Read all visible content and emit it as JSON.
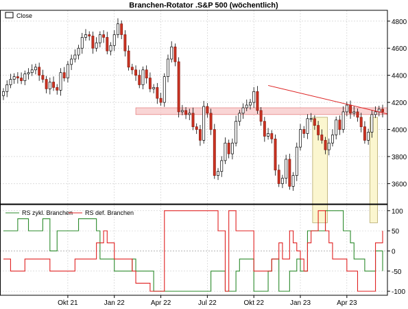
{
  "title": "Branchen-Rotator .S&P 500 (wöchentlich)",
  "colors": {
    "up_candle_fill": "#ffffff",
    "up_candle_stroke": "#000000",
    "down_candle_fill": "#cc3322",
    "trendline": "#dd2222",
    "support_zone_fill": "#f7c7c7",
    "support_zone_stroke": "#e06666",
    "highlight_fill": "#fbf6cf",
    "highlight_stroke": "#b5a86a",
    "cyclical_line": "#2b8a2b",
    "defensive_line": "#e02020",
    "grid": "#c8c8c8"
  },
  "chart_data": [
    {
      "type": "candlestick",
      "title": "Branchen-Rotator .S&P 500 (wöchentlich)",
      "legend": [
        {
          "name": "Close",
          "position": "top-left"
        }
      ],
      "x_ticks": [
        "Okt 21",
        "Jan 22",
        "Apr 22",
        "Jul 22",
        "Okt 22",
        "Jan 23",
        "Apr 23"
      ],
      "y_ticks": [
        3600,
        3800,
        4000,
        4200,
        4400,
        4600,
        4800
      ],
      "ylim": [
        3450,
        4880
      ],
      "grid": true,
      "closes": [
        4280,
        4330,
        4370,
        4390,
        4380,
        4360,
        4410,
        4420,
        4440,
        4460,
        4400,
        4370,
        4300,
        4350,
        4310,
        4290,
        4420,
        4380,
        4480,
        4520,
        4550,
        4600,
        4680,
        4700,
        4690,
        4600,
        4640,
        4700,
        4680,
        4580,
        4620,
        4700,
        4780,
        4700,
        4580,
        4460,
        4440,
        4400,
        4330,
        4440,
        4380,
        4300,
        4310,
        4230,
        4200,
        4390,
        4520,
        4610,
        4500,
        4130,
        4140,
        4110,
        4120,
        4020,
        4000,
        3920,
        4170,
        4120,
        4000,
        3660,
        3690,
        3770,
        3900,
        3820,
        3900,
        4060,
        4120,
        4160,
        4180,
        4200,
        4280,
        4140,
        4060,
        3950,
        3970,
        3930,
        3700,
        3600,
        3640,
        3780,
        3580,
        3660,
        3870,
        4000,
        3970,
        4080,
        4080,
        4030,
        3960,
        3920,
        3850,
        3900,
        3960,
        4070,
        4000,
        4130,
        4180,
        4120,
        4130,
        4090,
        4020,
        3920,
        3980,
        4110,
        4130,
        4150,
        4130
      ],
      "support_zone": [
        4110,
        4160
      ],
      "trendline": {
        "from_week": 74,
        "from_value": 4325,
        "to_week": 107,
        "to_value": 4115
      },
      "highlights": [
        {
          "from_week": 87,
          "to_week": 90
        },
        {
          "from_week": 103,
          "to_week": 104
        }
      ]
    },
    {
      "type": "line",
      "legend": [
        {
          "name": "RS zykl. Branchen",
          "color": "#2b8a2b"
        },
        {
          "name": "RS def. Branchen",
          "color": "#e02020"
        }
      ],
      "y_ticks": [
        100,
        50,
        0,
        -50,
        -100
      ],
      "ylim": [
        -110,
        115
      ],
      "reference_line": 0,
      "series": [
        {
          "name": "RS zykl. Branchen",
          "segments": [
            [
              0,
              50
            ],
            [
              4,
              80
            ],
            [
              7,
              50
            ],
            [
              11,
              80
            ],
            [
              13,
              0
            ],
            [
              15,
              50
            ],
            [
              21,
              80
            ],
            [
              26,
              50
            ],
            [
              27,
              -20
            ],
            [
              31,
              -50
            ],
            [
              35,
              -50
            ],
            [
              36,
              -20
            ],
            [
              37,
              -50
            ],
            [
              42,
              -100
            ],
            [
              55,
              -100
            ],
            [
              58,
              -50
            ],
            [
              62,
              -100
            ],
            [
              65,
              -50
            ],
            [
              66,
              -20
            ],
            [
              70,
              -100
            ],
            [
              74,
              -50
            ],
            [
              75,
              -20
            ],
            [
              77,
              -100
            ],
            [
              80,
              -50
            ],
            [
              81,
              -50
            ],
            [
              82,
              -20
            ],
            [
              83,
              -50
            ],
            [
              84,
              -50
            ],
            [
              85,
              50
            ],
            [
              90,
              100
            ],
            [
              95,
              50
            ],
            [
              97,
              20
            ],
            [
              98,
              -20
            ],
            [
              101,
              -50
            ],
            [
              104,
              0
            ],
            [
              106,
              -50
            ]
          ],
          "end_week": 106
        },
        {
          "name": "RS def. Branchen",
          "segments": [
            [
              0,
              -20
            ],
            [
              2,
              -50
            ],
            [
              6,
              -20
            ],
            [
              11,
              -20
            ],
            [
              13,
              -50
            ],
            [
              20,
              -20
            ],
            [
              26,
              20
            ],
            [
              28,
              50
            ],
            [
              29,
              20
            ],
            [
              31,
              -20
            ],
            [
              36,
              -50
            ],
            [
              37,
              -80
            ],
            [
              41,
              -100
            ],
            [
              45,
              100
            ],
            [
              60,
              50
            ],
            [
              62,
              -100
            ],
            [
              63,
              100
            ],
            [
              65,
              50
            ],
            [
              70,
              -50
            ],
            [
              75,
              -20
            ],
            [
              77,
              20
            ],
            [
              78,
              -20
            ],
            [
              80,
              50
            ],
            [
              81,
              20
            ],
            [
              82,
              0
            ],
            [
              83,
              -20
            ],
            [
              84,
              -50
            ],
            [
              85,
              20
            ],
            [
              86,
              50
            ],
            [
              88,
              100
            ],
            [
              90,
              50
            ],
            [
              91,
              20
            ],
            [
              92,
              -20
            ],
            [
              96,
              -50
            ],
            [
              99,
              -100
            ],
            [
              104,
              20
            ],
            [
              106,
              50
            ]
          ],
          "end_week": 106
        }
      ]
    }
  ]
}
